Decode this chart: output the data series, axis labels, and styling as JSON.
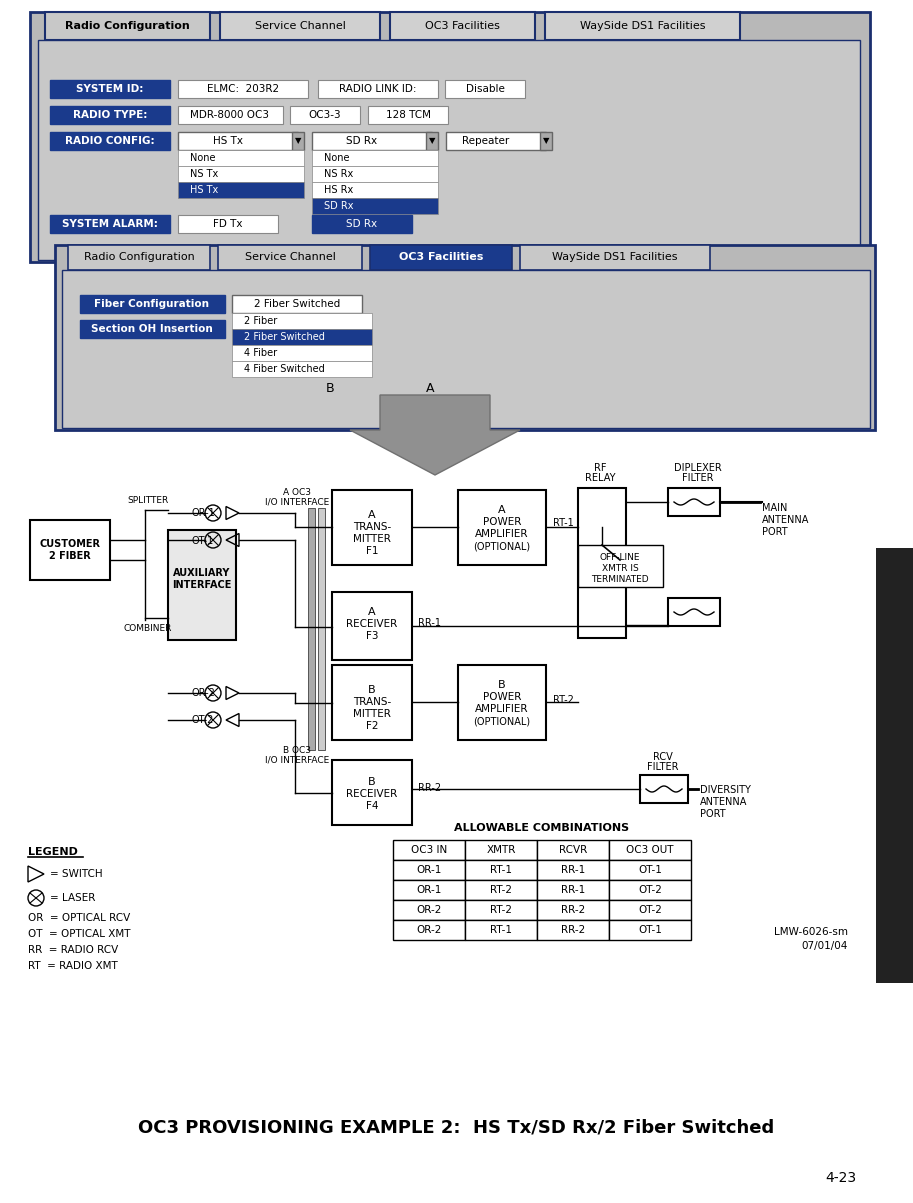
{
  "title": "OC3 PROVISIONING EXAMPLE 2:  HS Tx/SD Rx/2 Fiber Switched",
  "page_num": "4-23",
  "bg_color": "#ffffff",
  "panel_bg": "#c0c0c0",
  "panel_border": "#1a2e6e",
  "blue_label_bg": "#1a3a8c",
  "blue_label_fg": "#ffffff",
  "top_panel": {
    "tabs": [
      "Radio Configuration",
      "Service Channel",
      "OC3 Facilities",
      "WaySide DS1 Facilities"
    ],
    "active_tab": 0,
    "dropdown_items_left": [
      "None",
      "NS Tx",
      "HS Tx"
    ],
    "dropdown_items_right": [
      "None",
      "NS Rx",
      "HS Rx",
      "SD Rx"
    ]
  },
  "bottom_panel": {
    "tabs": [
      "Radio Configuration",
      "Service Channel",
      "OC3 Facilities",
      "WaySide DS1 Facilities"
    ],
    "active_tab": 2,
    "dropdown_items": [
      "2 Fiber",
      "2 Fiber Switched",
      "4 Fiber",
      "4 Fiber Switched"
    ]
  },
  "allowable_table": {
    "title": "ALLOWABLE COMBINATIONS",
    "headers": [
      "OC3 IN",
      "XMTR",
      "RCVR",
      "OC3 OUT"
    ],
    "rows": [
      [
        "OR-1",
        "RT-1",
        "RR-1",
        "OT-1"
      ],
      [
        "OR-1",
        "RT-2",
        "RR-1",
        "OT-2"
      ],
      [
        "OR-2",
        "RT-2",
        "RR-2",
        "OT-2"
      ],
      [
        "OR-2",
        "RT-1",
        "RR-2",
        "OT-1"
      ]
    ]
  },
  "legend_texts": [
    "OR  = OPTICAL RCV",
    "OT  = OPTICAL XMT",
    "RR  = RADIO RCV",
    "RT  = RADIO XMT"
  ],
  "lmw_label": [
    "LMW-6026-sm",
    "07/01/04"
  ],
  "arrow_color": "#808080",
  "line_color": "#000000",
  "box_color": "#ffffff"
}
